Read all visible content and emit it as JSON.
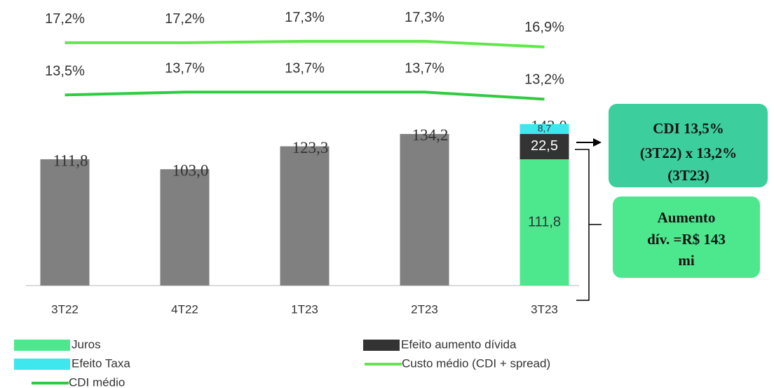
{
  "chart_data": {
    "type": "bar",
    "categories": [
      "3T22",
      "4T22",
      "1T23",
      "2T23",
      "3T23"
    ],
    "ylim": [
      0,
      250
    ],
    "y2lim": [
      0,
      20
    ],
    "series": [
      {
        "color": "#808080",
        "values": [
          111.8,
          103.0,
          123.3,
          134.2,
          null
        ],
        "value_labels": [
          "111,8",
          "103,0",
          "123,3",
          "134,2",
          null
        ]
      },
      {
        "name": "Juros",
        "color": "#4de88e",
        "values": [
          null,
          null,
          null,
          null,
          111.8
        ],
        "value_labels": [
          null,
          null,
          null,
          null,
          "111,8"
        ]
      },
      {
        "name": "Efeito aumento dívida",
        "color": "#333333",
        "values": [
          null,
          null,
          null,
          null,
          22.5
        ],
        "value_labels": [
          null,
          null,
          null,
          null,
          "22,5"
        ]
      },
      {
        "name": "Efeito Taxa",
        "color": "#3ee6ee",
        "values": [
          null,
          null,
          null,
          null,
          8.7
        ],
        "value_labels": [
          null,
          null,
          null,
          null,
          "8,7"
        ]
      },
      {
        "name": "Custo médio (CDI + spread)",
        "type": "line",
        "axis": "y2",
        "color": "#5fe84a",
        "values": [
          17.2,
          17.2,
          17.3,
          17.3,
          16.9
        ],
        "value_labels": [
          "17,2%",
          "17,2%",
          "17,3%",
          "17,3%",
          "16,9%"
        ]
      },
      {
        "name": "CDI médio",
        "type": "line",
        "axis": "y2",
        "color": "#2ecc40",
        "values": [
          13.5,
          13.7,
          13.7,
          13.7,
          13.2
        ],
        "value_labels": [
          "13,5%",
          "13,7%",
          "13,7%",
          "13,7%",
          "13,2%"
        ]
      }
    ],
    "total_label": "143,0",
    "annotations": [
      {
        "lines": [
          "CDI 13,5%",
          "(3T22) x 13,2%",
          "(3T23)"
        ]
      },
      {
        "lines": [
          "Aumento",
          "dív. =R$ 143",
          "mi"
        ]
      }
    ]
  }
}
